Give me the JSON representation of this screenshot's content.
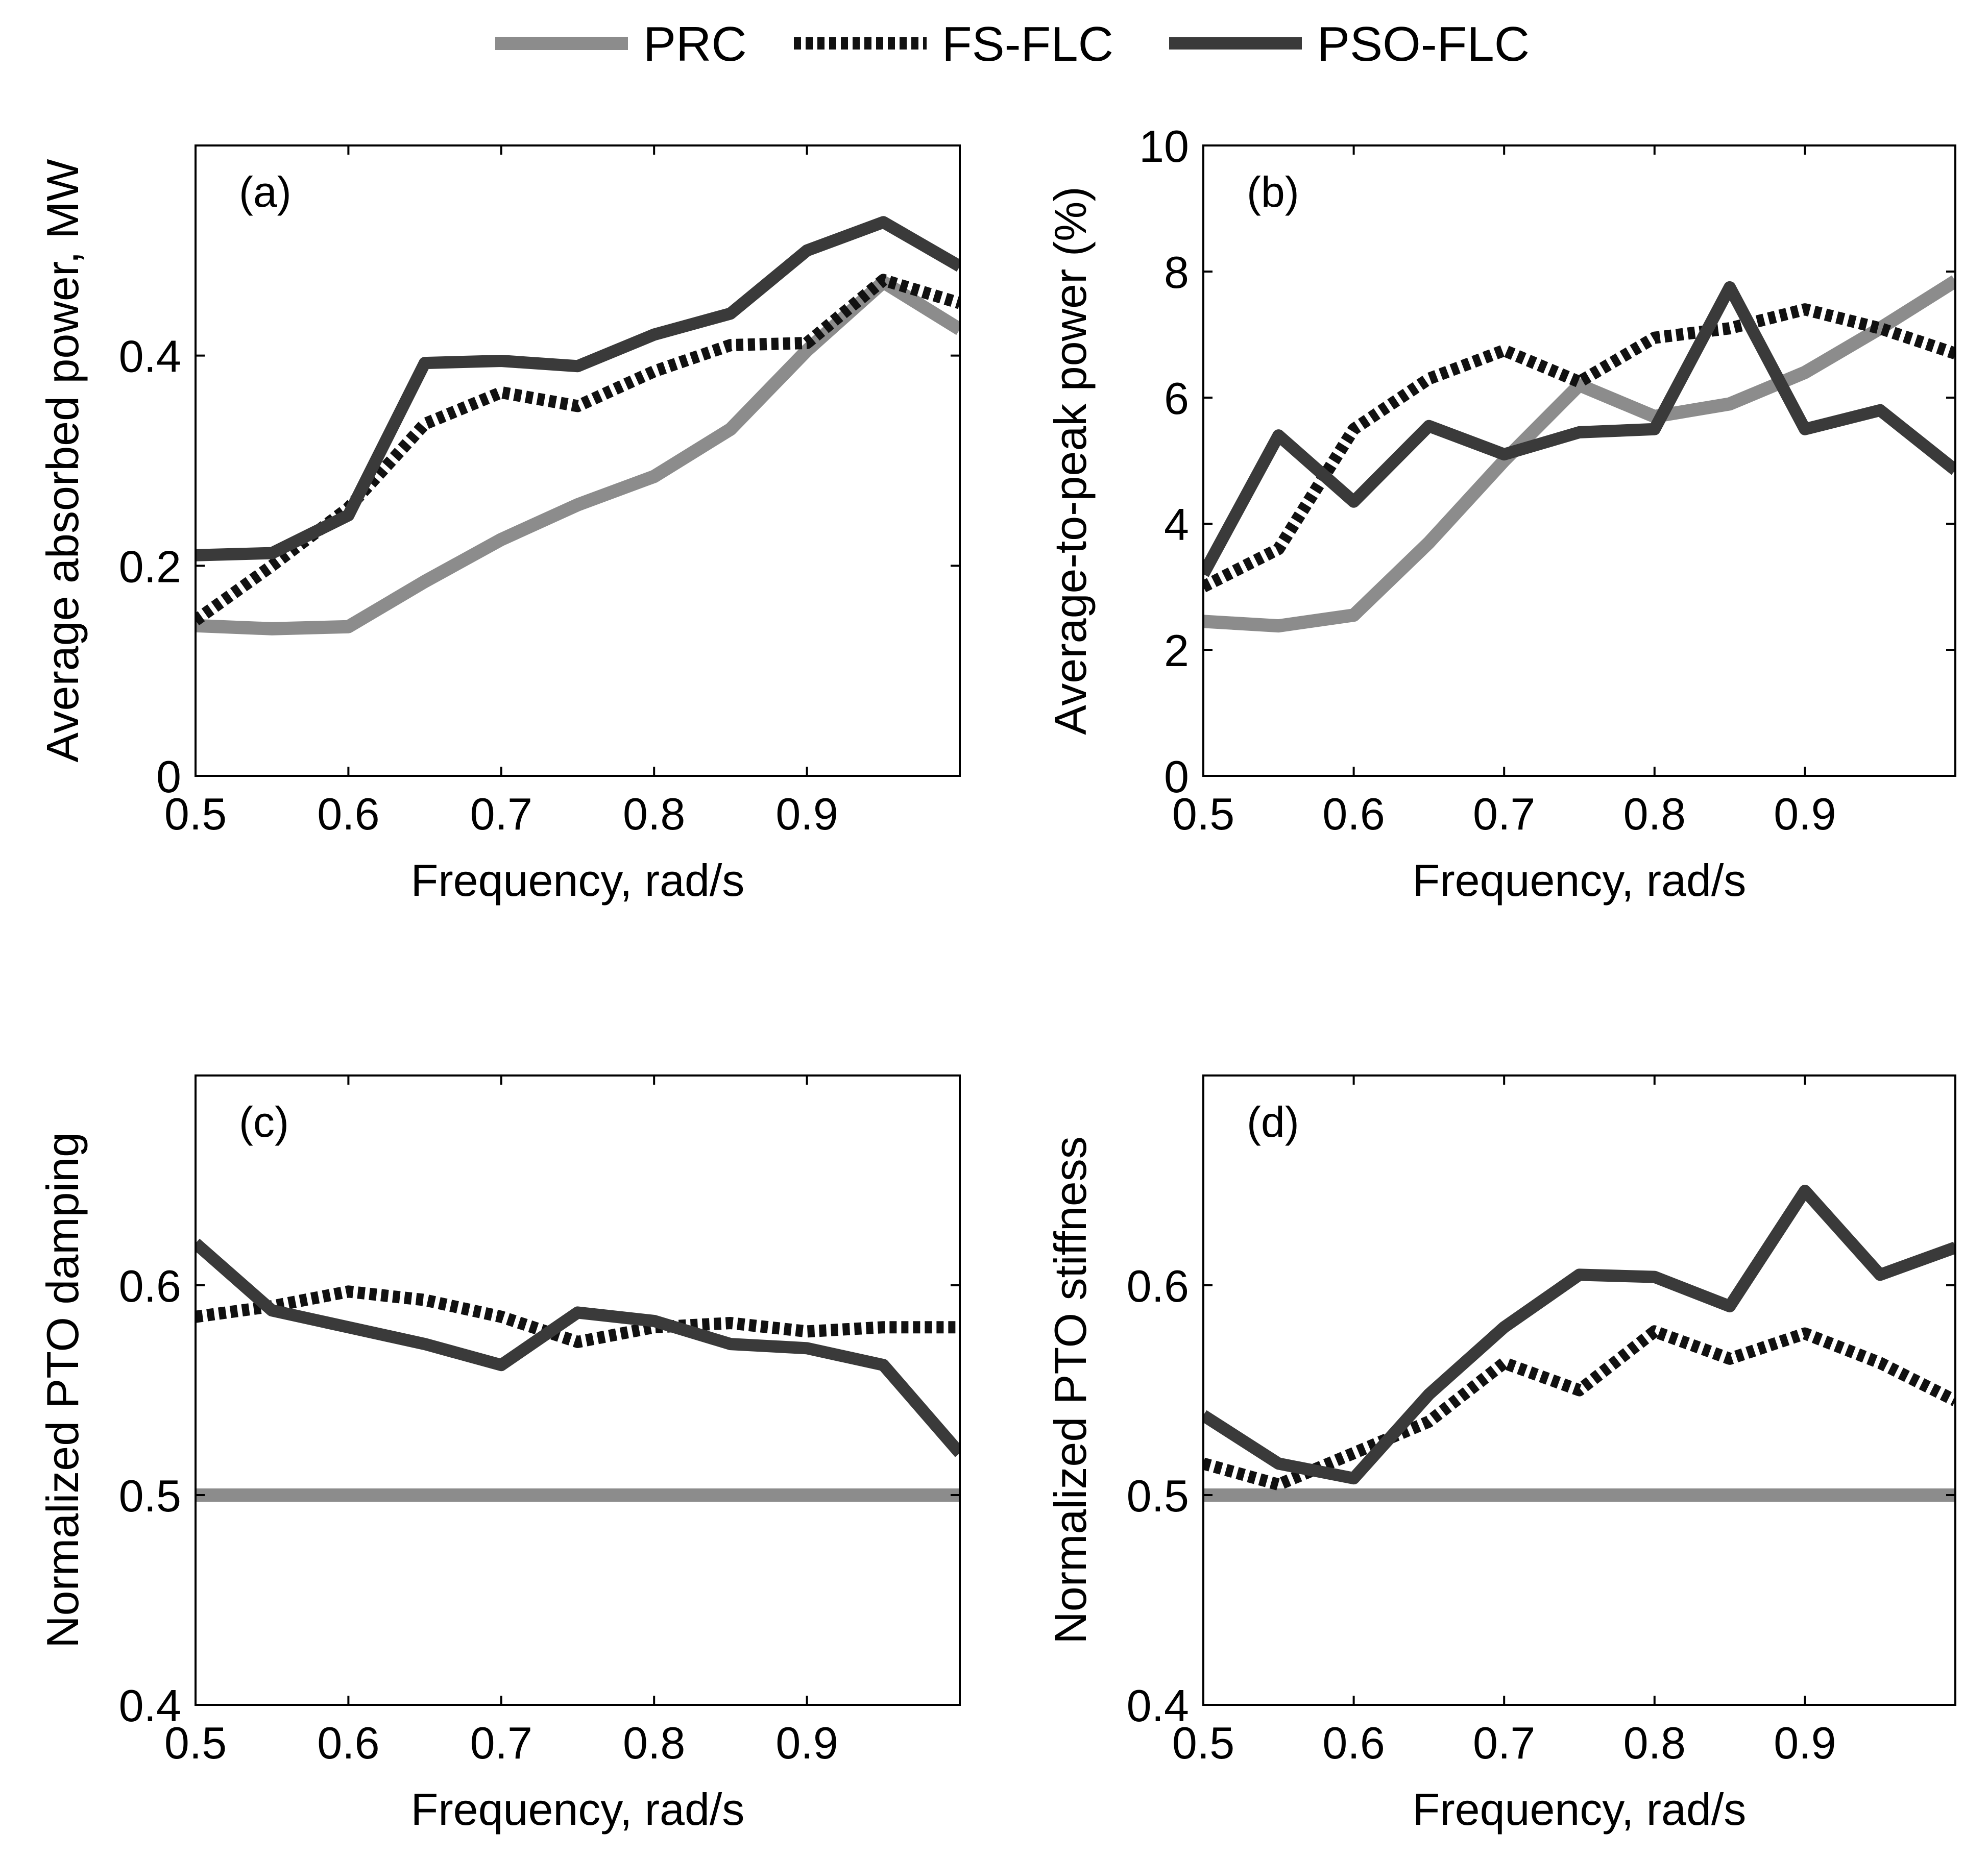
{
  "legend": {
    "entries": [
      {
        "name": "PRC",
        "style": "solid",
        "color": "#8c8c8c"
      },
      {
        "name": "FS-FLC",
        "style": "dotted",
        "color": "#111111"
      },
      {
        "name": "PSO-FLC",
        "style": "solid",
        "color": "#3a3a3a"
      }
    ]
  },
  "chart_data": [
    {
      "type": "line",
      "panel_label": "(a)",
      "xlabel": "Frequency, rad/s",
      "ylabel": "Average absorbed power, MW",
      "xlim": [
        0.5,
        1.0
      ],
      "ylim": [
        0,
        0.6
      ],
      "xticks": [
        "0.5",
        "0.6",
        "0.7",
        "0.8",
        "0.9"
      ],
      "yticks": [
        "0",
        "0.2",
        "0.4"
      ],
      "x": [
        0.5,
        0.55,
        0.6,
        0.65,
        0.7,
        0.75,
        0.8,
        0.85,
        0.9,
        0.95,
        1.0
      ],
      "series": [
        {
          "name": "PRC",
          "values": [
            0.143,
            0.14,
            0.142,
            0.185,
            0.225,
            0.258,
            0.285,
            0.33,
            0.405,
            0.47,
            0.425
          ]
        },
        {
          "name": "FS-FLC",
          "values": [
            0.148,
            0.2,
            0.255,
            0.335,
            0.365,
            0.352,
            0.385,
            0.41,
            0.412,
            0.472,
            0.45
          ]
        },
        {
          "name": "PSO-FLC",
          "values": [
            0.21,
            0.212,
            0.248,
            0.393,
            0.395,
            0.39,
            0.42,
            0.44,
            0.5,
            0.527,
            0.485
          ]
        }
      ]
    },
    {
      "type": "line",
      "panel_label": "(b)",
      "xlabel": "Frequency, rad/s",
      "ylabel": "Average-to-peak power (%)",
      "xlim": [
        0.5,
        1.0
      ],
      "ylim": [
        0,
        10
      ],
      "xticks": [
        "0.5",
        "0.6",
        "0.7",
        "0.8",
        "0.9"
      ],
      "yticks": [
        "0",
        "2",
        "4",
        "6",
        "8",
        "10"
      ],
      "x": [
        0.5,
        0.55,
        0.6,
        0.65,
        0.7,
        0.75,
        0.8,
        0.85,
        0.9,
        0.95,
        1.0
      ],
      "series": [
        {
          "name": "PRC",
          "values": [
            2.45,
            2.38,
            2.55,
            3.7,
            5.0,
            6.2,
            5.7,
            5.9,
            6.4,
            7.1,
            7.85
          ]
        },
        {
          "name": "FS-FLC",
          "values": [
            3.0,
            3.6,
            5.5,
            6.3,
            6.75,
            6.25,
            6.95,
            7.1,
            7.4,
            7.1,
            6.7
          ]
        },
        {
          "name": "PSO-FLC",
          "values": [
            3.2,
            5.4,
            4.35,
            5.55,
            5.1,
            5.45,
            5.5,
            7.75,
            5.5,
            5.8,
            4.85
          ]
        }
      ]
    },
    {
      "type": "line",
      "panel_label": "(c)",
      "xlabel": "Frequency, rad/s",
      "ylabel": "Normalized PTO damping",
      "xlim": [
        0.5,
        1.0
      ],
      "ylim": [
        0.4,
        0.7
      ],
      "xticks": [
        "0.5",
        "0.6",
        "0.7",
        "0.8",
        "0.9"
      ],
      "yticks": [
        "0.4",
        "0.5",
        "0.6"
      ],
      "x": [
        0.5,
        0.55,
        0.6,
        0.65,
        0.7,
        0.75,
        0.8,
        0.85,
        0.9,
        0.95,
        1.0
      ],
      "series": [
        {
          "name": "PRC",
          "values": [
            0.5,
            0.5,
            0.5,
            0.5,
            0.5,
            0.5,
            0.5,
            0.5,
            0.5,
            0.5,
            0.5
          ]
        },
        {
          "name": "FS-FLC",
          "values": [
            0.585,
            0.59,
            0.597,
            0.593,
            0.585,
            0.573,
            0.58,
            0.582,
            0.578,
            0.58,
            0.58
          ]
        },
        {
          "name": "PSO-FLC",
          "values": [
            0.62,
            0.588,
            0.58,
            0.572,
            0.562,
            0.587,
            0.583,
            0.572,
            0.57,
            0.562,
            0.52
          ]
        }
      ]
    },
    {
      "type": "line",
      "panel_label": "(d)",
      "xlabel": "Frequency, rad/s",
      "ylabel": "Normalized PTO stiffness",
      "xlim": [
        0.5,
        1.0
      ],
      "ylim": [
        0.4,
        0.7
      ],
      "xticks": [
        "0.5",
        "0.6",
        "0.7",
        "0.8",
        "0.9"
      ],
      "yticks": [
        "0.4",
        "0.5",
        "0.6"
      ],
      "x": [
        0.5,
        0.55,
        0.6,
        0.65,
        0.7,
        0.75,
        0.8,
        0.85,
        0.9,
        0.95,
        1.0
      ],
      "series": [
        {
          "name": "PRC",
          "values": [
            0.5,
            0.5,
            0.5,
            0.5,
            0.5,
            0.5,
            0.5,
            0.5,
            0.5,
            0.5,
            0.5
          ]
        },
        {
          "name": "FS-FLC",
          "values": [
            0.515,
            0.505,
            0.52,
            0.535,
            0.563,
            0.55,
            0.578,
            0.565,
            0.577,
            0.563,
            0.545
          ]
        },
        {
          "name": "PSO-FLC",
          "values": [
            0.538,
            0.515,
            0.508,
            0.548,
            0.58,
            0.605,
            0.604,
            0.59,
            0.645,
            0.605,
            0.618
          ]
        }
      ]
    }
  ]
}
